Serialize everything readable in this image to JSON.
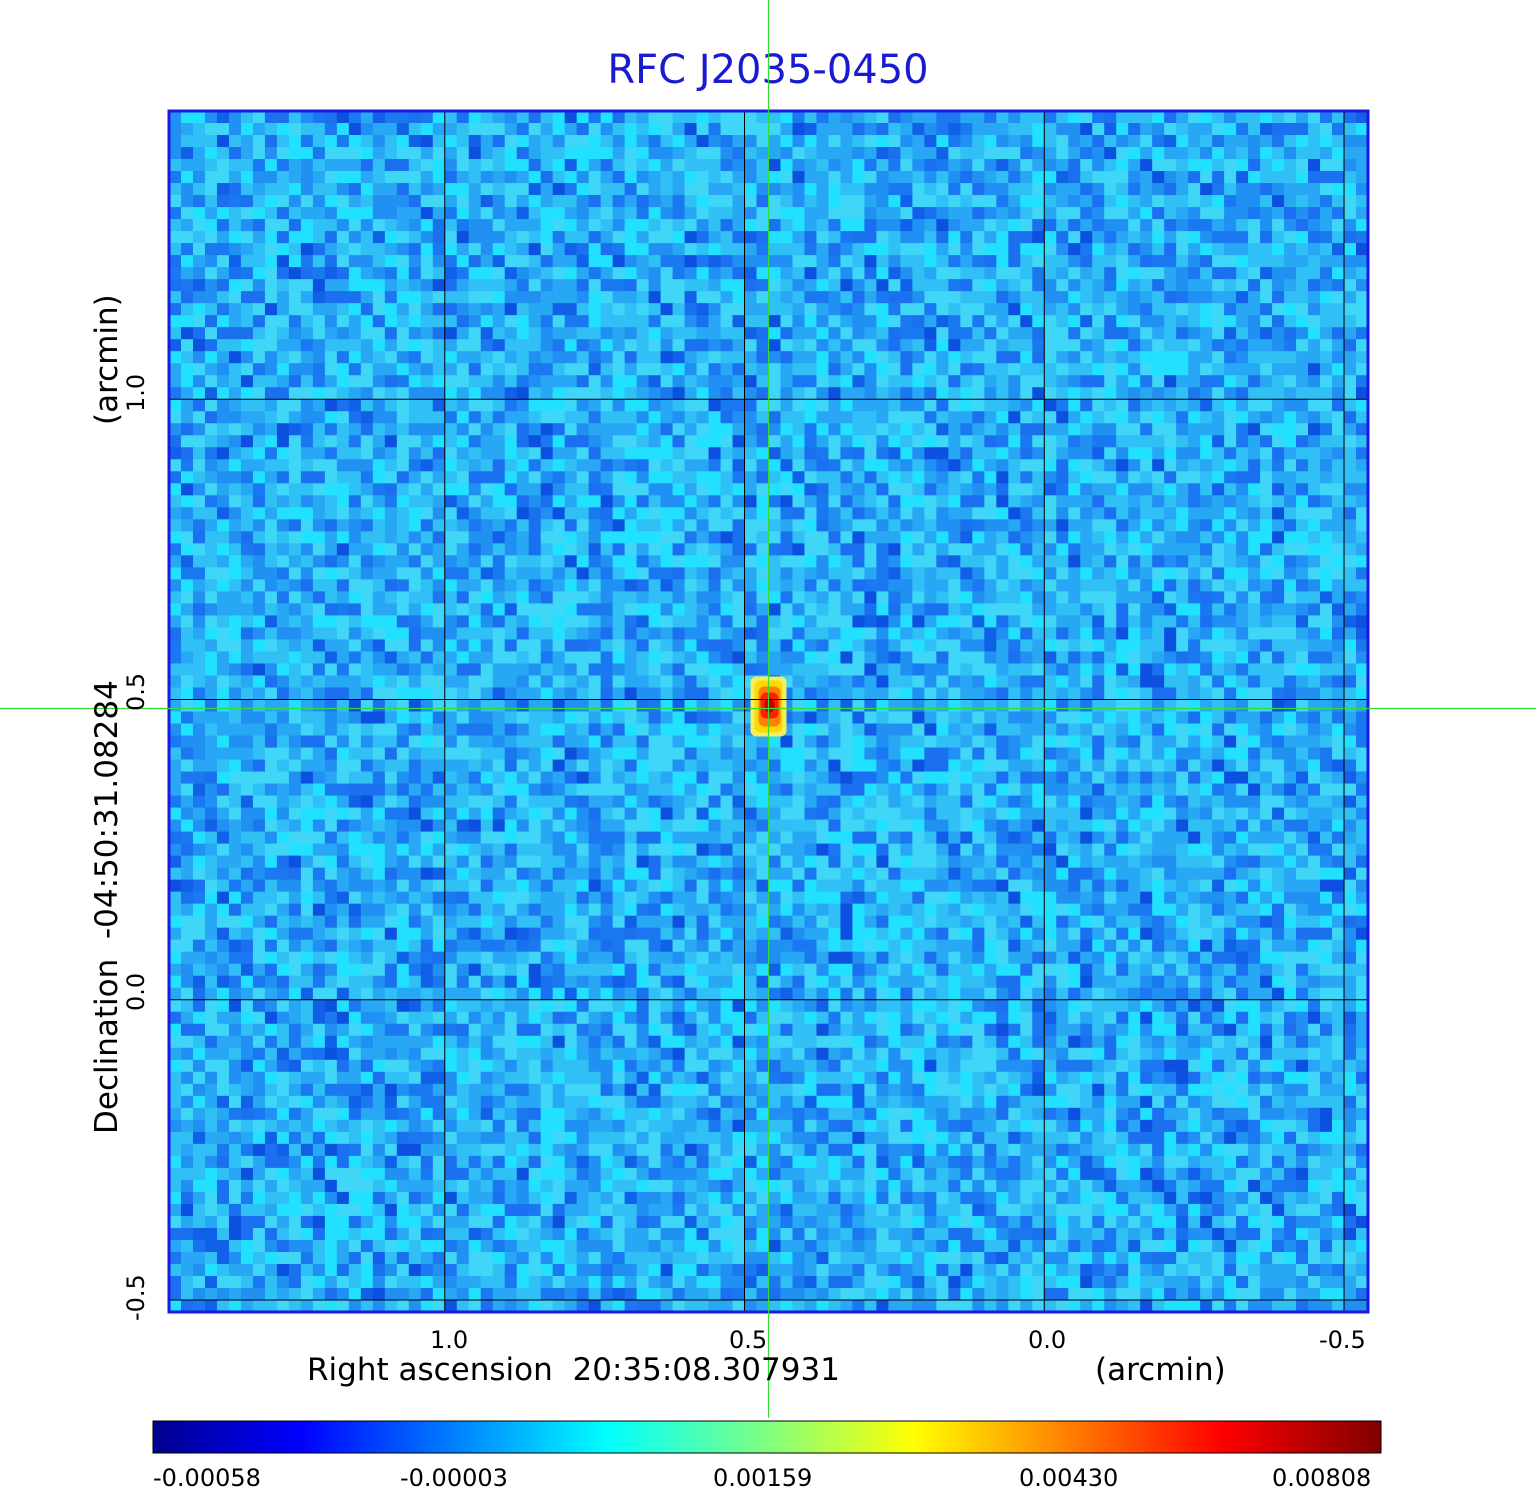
{
  "chart_data": {
    "type": "heatmap",
    "title": "RFC J2035-0450",
    "xlabel": "Right ascension",
    "x_center": "20:35:08.307931",
    "x_unit": "(arcmin)",
    "ylabel": "Declination",
    "y_center": "-04:50:31.08284",
    "y_unit": "(arcmin)",
    "x_ticks": [
      "1.0",
      "0.5",
      "0.0",
      "-0.5"
    ],
    "y_ticks": [
      "1.0",
      "0.5",
      "0.0",
      "-0.5"
    ],
    "x_tick_values": [
      1.0,
      0.5,
      0.0,
      -0.5
    ],
    "y_tick_values": [
      1.0,
      0.5,
      0.0,
      -0.5
    ],
    "xlim": [
      1.46,
      -0.54
    ],
    "ylim": [
      -0.52,
      1.48
    ],
    "grid": true,
    "crosshair": {
      "x": 0.46,
      "y": 0.485
    },
    "peak": {
      "x": 0.46,
      "y": 0.485,
      "value": 0.00808
    },
    "colormap": "jet",
    "colorbar_ticks": [
      "-0.00058",
      "-0.00003",
      "0.00159",
      "0.00430",
      "0.00808"
    ],
    "colorbar_range": [
      -0.00058,
      0.00808
    ]
  },
  "colors": {
    "title": "#1a1ad0",
    "frame": "#1a1ae0",
    "grid": "#000000",
    "crosshair": "#33dd33"
  }
}
